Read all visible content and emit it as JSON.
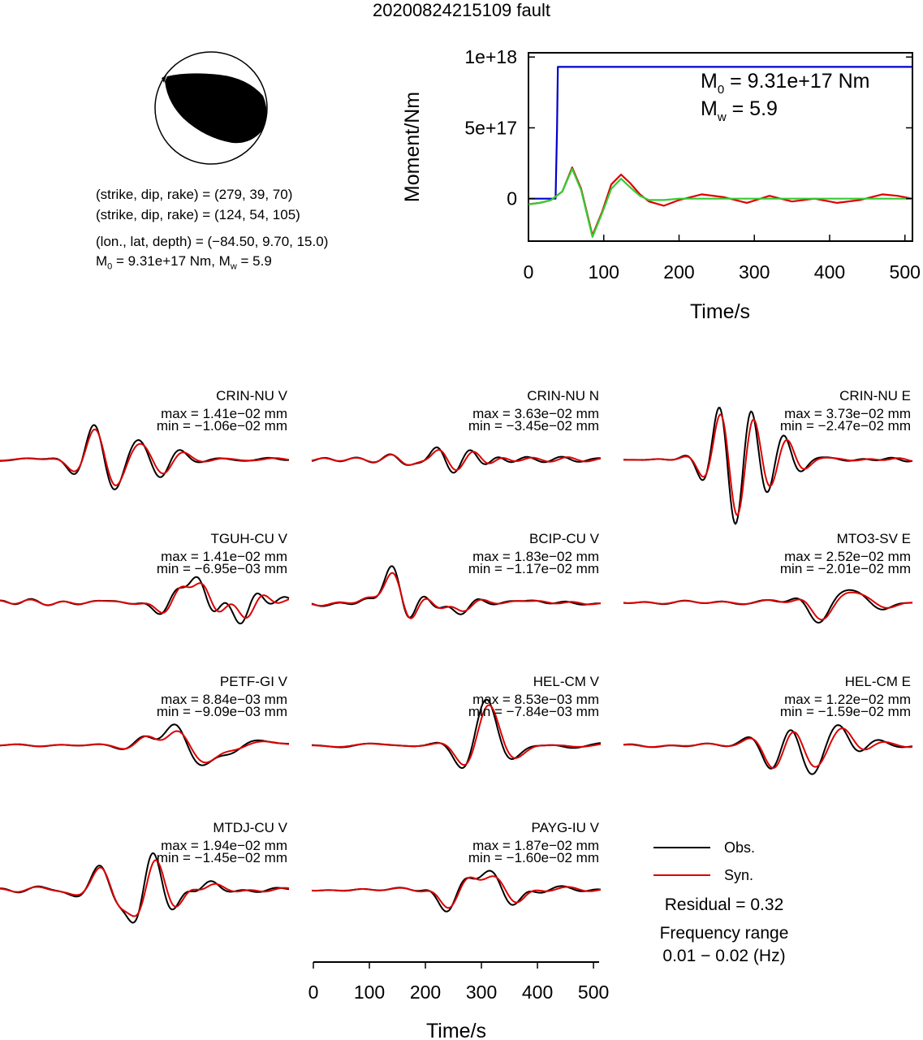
{
  "title": "20200824215109 fault",
  "mechanism": {
    "line1": "(strike, dip, rake) = (279, 39, 70)",
    "line2": "(strike, dip, rake) = (124, 54, 105)",
    "line3": "(lon., lat, depth) = (−84.50, 9.70, 15.0)",
    "m0_label": "M",
    "m0_sub": "0",
    "m0_value": " = 9.31e+17 Nm, M",
    "mw_sub": "w",
    "mw_value": " = 5.9"
  },
  "chart_data": [
    {
      "type": "line",
      "name": "moment-rate",
      "xlabel": "Time/s",
      "ylabel": "Moment/Nm",
      "xlim": [
        0,
        510
      ],
      "ylim": [
        -3e+17,
        1.03e+18
      ],
      "xticks": [
        0,
        100,
        200,
        300,
        400,
        500
      ],
      "yticks": [
        {
          "value": 0,
          "label": "0"
        },
        {
          "value": 5e+17,
          "label": "5e+17"
        },
        {
          "value": 1e+18,
          "label": "1e+18"
        }
      ],
      "annot_m0": [
        "M",
        "0",
        " = 9.31e+17 Nm"
      ],
      "annot_mw": [
        "M",
        "w",
        " = 5.9"
      ],
      "series": [
        {
          "color": "#0000cc",
          "x": [
            0,
            36,
            38,
            39,
            510
          ],
          "y": [
            0,
            0,
            5e+17,
            9.3e+17,
            9.3e+17
          ]
        },
        {
          "color": "#dd0000",
          "x": [
            0,
            15,
            30,
            45,
            58,
            70,
            85,
            98,
            110,
            123,
            135,
            148,
            160,
            180,
            200,
            230,
            260,
            290,
            320,
            350,
            380,
            410,
            440,
            470,
            490,
            510
          ],
          "y": [
            -4e+16,
            -3e+16,
            -1e+16,
            5e+16,
            2.2e+17,
            7e+16,
            -2.6e+17,
            -9e+16,
            1e+17,
            1.7e+17,
            1.1e+17,
            3e+16,
            -2e+16,
            -5e+16,
            -1e+16,
            3e+16,
            1e+16,
            -3e+16,
            2e+16,
            -2e+16,
            0,
            -3e+16,
            -1e+16,
            3e+16,
            2e+16,
            0
          ]
        },
        {
          "color": "#33cc33",
          "x": [
            0,
            15,
            30,
            45,
            58,
            70,
            85,
            98,
            110,
            123,
            135,
            148,
            160,
            180,
            200,
            230,
            510
          ],
          "y": [
            -4e+16,
            -3e+16,
            -1e+16,
            5e+16,
            2.1e+17,
            6e+16,
            -2.7e+17,
            -1e+17,
            7e+16,
            1.4e+17,
            8e+16,
            2e+16,
            -1e+16,
            -1e+16,
            0,
            0,
            0
          ]
        }
      ]
    },
    {
      "type": "line",
      "name": "waveforms",
      "xlabel": "Time/s",
      "xlim": [
        0,
        510
      ],
      "xticks": [
        0,
        100,
        200,
        300,
        400,
        500
      ],
      "legend": [
        "Obs.",
        "Syn."
      ],
      "legend_colors": [
        "#000000",
        "#dd0000"
      ],
      "residual": "Residual = 0.32",
      "freq_title": "Frequency range",
      "freq_value": "0.01 − 0.02 (Hz)",
      "stations": [
        {
          "name": "CRIN-NU V",
          "max": "max = 1.41e−02 mm",
          "min": "min = −1.06e−02 mm",
          "col": 0,
          "row": 0,
          "seed": 11
        },
        {
          "name": "CRIN-NU N",
          "max": "max = 3.63e−02 mm",
          "min": "min = −3.45e−02 mm",
          "col": 1,
          "row": 0,
          "seed": 23
        },
        {
          "name": "CRIN-NU E",
          "max": "max = 3.73e−02 mm",
          "min": "min = −2.47e−02 mm",
          "col": 2,
          "row": 0,
          "seed": 37
        },
        {
          "name": "TGUH-CU V",
          "max": "max = 1.41e−02 mm",
          "min": "min = −6.95e−03 mm",
          "col": 0,
          "row": 1,
          "seed": 41
        },
        {
          "name": "BCIP-CU V",
          "max": "max = 1.83e−02 mm",
          "min": "min = −1.17e−02 mm",
          "col": 1,
          "row": 1,
          "seed": 53
        },
        {
          "name": "MTO3-SV E",
          "max": "max = 2.52e−02 mm",
          "min": "min = −2.01e−02 mm",
          "col": 2,
          "row": 1,
          "seed": 67
        },
        {
          "name": "PETF-GI V",
          "max": "max = 8.84e−03 mm",
          "min": "min = −9.09e−03 mm",
          "col": 0,
          "row": 2,
          "seed": 71
        },
        {
          "name": "HEL-CM V",
          "max": "max = 8.53e−03 mm",
          "min": "min = −7.84e−03 mm",
          "col": 1,
          "row": 2,
          "seed": 83
        },
        {
          "name": "HEL-CM E",
          "max": "max = 1.22e−02 mm",
          "min": "min = −1.59e−02 mm",
          "col": 2,
          "row": 2,
          "seed": 97
        },
        {
          "name": "MTDJ-CU V",
          "max": "max = 1.94e−02 mm",
          "min": "min = −1.45e−02 mm",
          "col": 0,
          "row": 3,
          "seed": 101
        },
        {
          "name": "PAYG-IU V",
          "max": "max = 1.87e−02 mm",
          "min": "min = −1.60e−02 mm",
          "col": 1,
          "row": 3,
          "seed": 113
        }
      ]
    }
  ]
}
